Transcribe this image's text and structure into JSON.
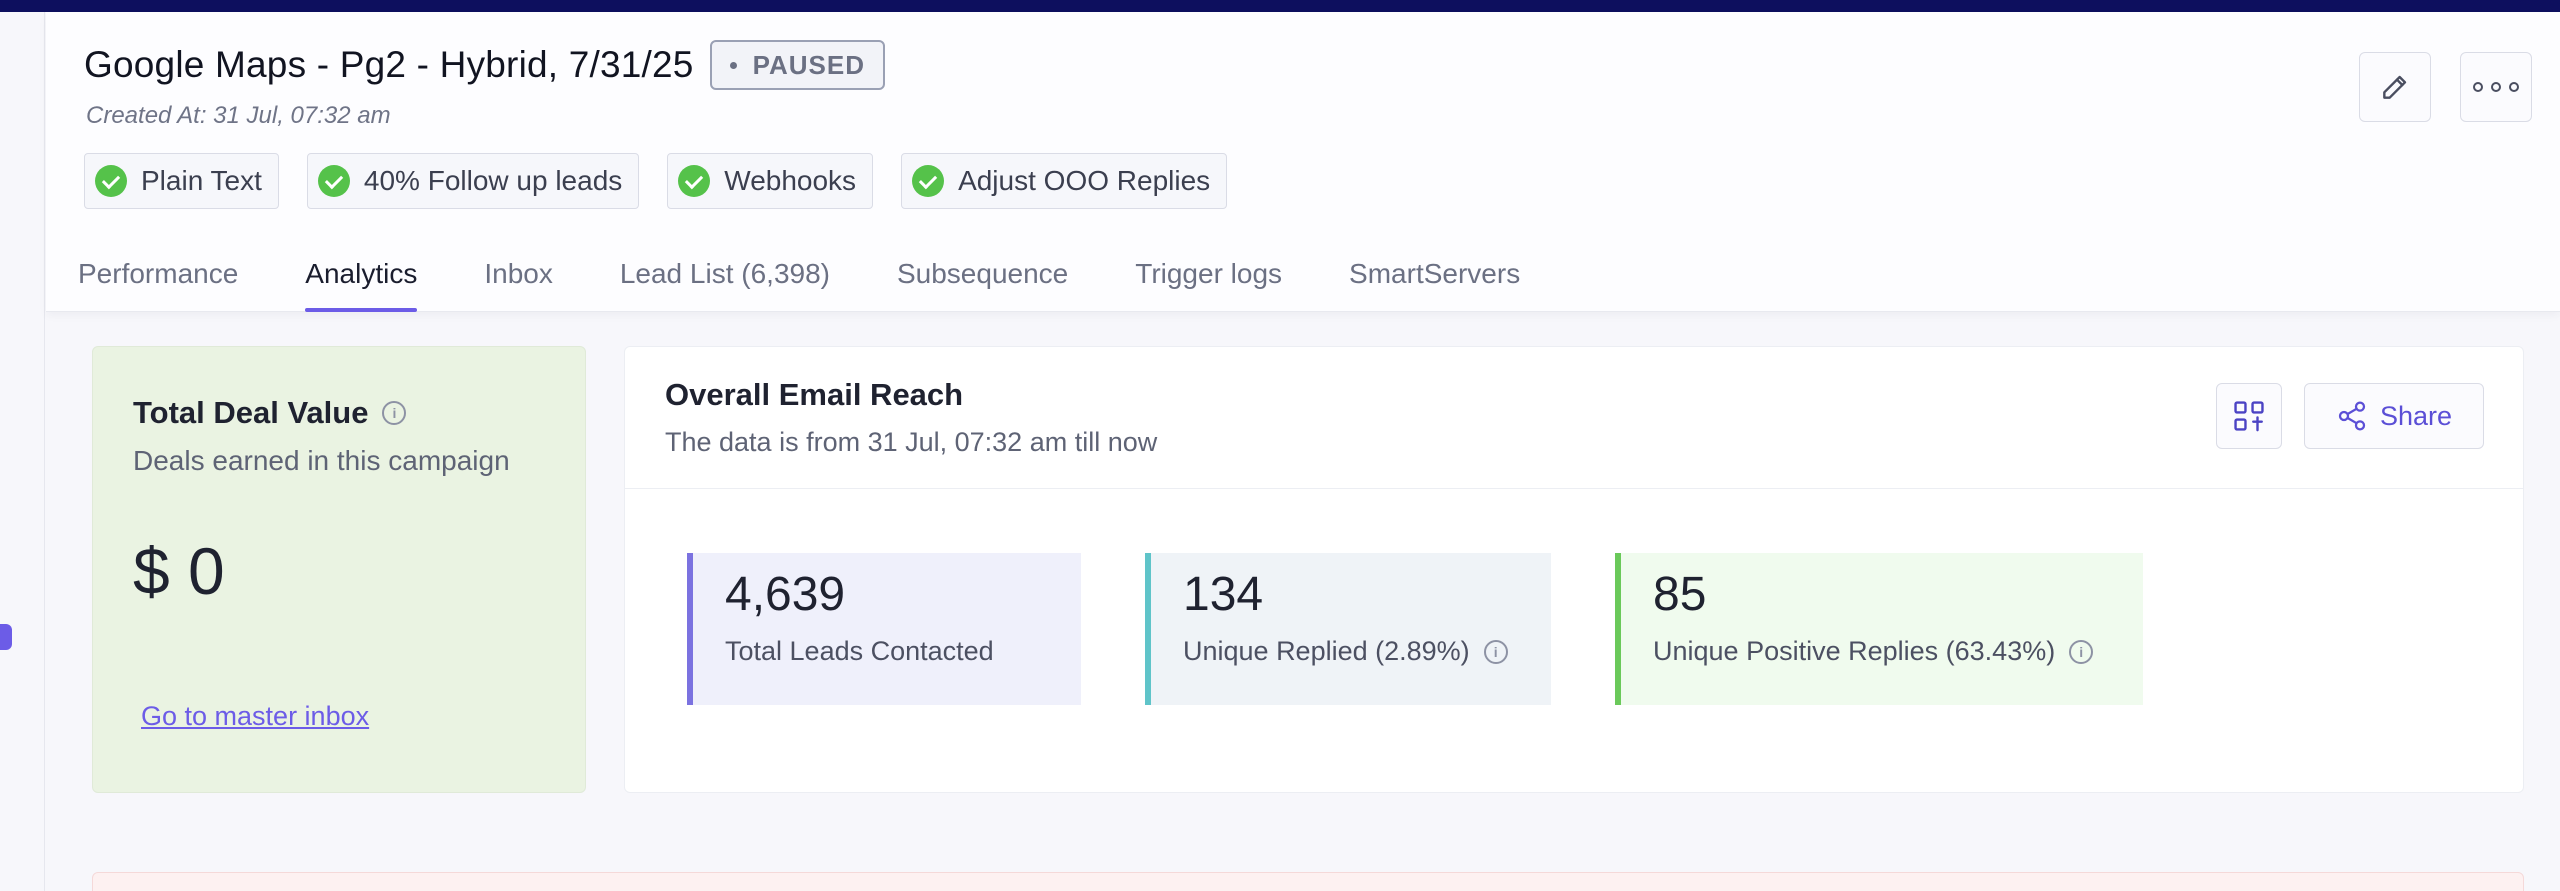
{
  "campaign": {
    "title": "Google Maps - Pg2 - Hybrid, 7/31/25",
    "status": "PAUSED",
    "created": "Created At: 31 Jul, 07:32 am"
  },
  "chips": [
    {
      "label": "Plain Text"
    },
    {
      "label": "40% Follow up leads"
    },
    {
      "label": "Webhooks"
    },
    {
      "label": "Adjust OOO Replies"
    }
  ],
  "tabs": [
    {
      "label": "Performance",
      "active": false
    },
    {
      "label": "Analytics",
      "active": true
    },
    {
      "label": "Inbox",
      "active": false
    },
    {
      "label": "Lead List (6,398)",
      "active": false
    },
    {
      "label": "Subsequence",
      "active": false
    },
    {
      "label": "Trigger logs",
      "active": false
    },
    {
      "label": "SmartServers",
      "active": false
    }
  ],
  "header_actions": {
    "edit_icon": "pencil-icon",
    "more_icon": "more-dots-icon"
  },
  "deal": {
    "title": "Total Deal Value",
    "subtitle": "Deals earned in this campaign",
    "value": "$ 0",
    "link": "Go to master inbox"
  },
  "reach": {
    "title": "Overall Email Reach",
    "subtitle": "The data is from 31 Jul, 07:32 am till now",
    "share_label": "Share",
    "stats": [
      {
        "value": "4,639",
        "label": "Total Leads Contacted"
      },
      {
        "value": "134",
        "label": "Unique Replied (2.89%)"
      },
      {
        "value": "85",
        "label": "Unique Positive Replies (63.43%)"
      }
    ]
  },
  "colors": {
    "accent": "#6c5ce7",
    "topbar": "#0d0f5e",
    "check_green": "#55c24a",
    "deal_bg": "#eaf3e2"
  }
}
